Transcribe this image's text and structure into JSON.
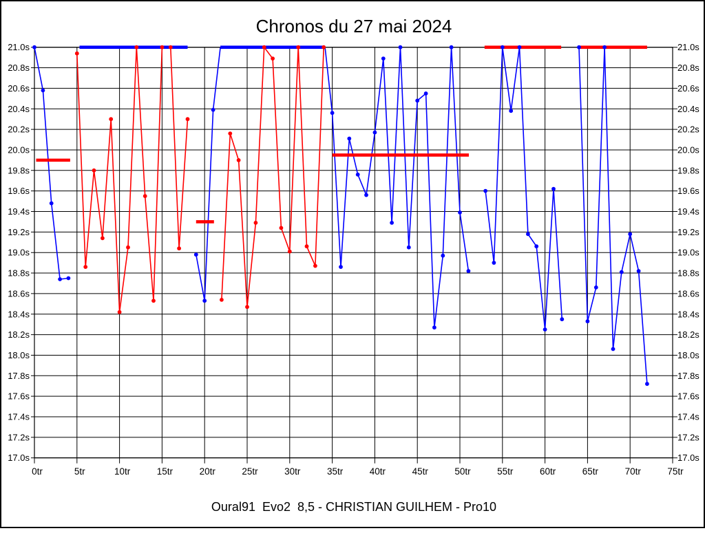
{
  "title": "Chronos du 27 mai 2024",
  "caption": "Oural91  Evo2  8,5 - CHRISTIAN GUILHEM - Pro10",
  "chart_data": {
    "type": "line",
    "title": "Chronos du 27 mai 2024",
    "xlabel": "",
    "ylabel": "",
    "xlim": [
      0,
      75
    ],
    "ylim": [
      17.0,
      21.0
    ],
    "x_tick_step": 5,
    "y_tick_step": 0.2,
    "x_tick_labels": [
      "0tr",
      "5tr",
      "10tr",
      "15tr",
      "20tr",
      "25tr",
      "30tr",
      "35tr",
      "40tr",
      "45tr",
      "50tr",
      "55tr",
      "60tr",
      "65tr",
      "70tr",
      "75tr"
    ],
    "y_tick_labels": [
      "21.0s",
      "20.8s",
      "20.6s",
      "20.4s",
      "20.2s",
      "20.0s",
      "19.8s",
      "19.6s",
      "19.4s",
      "19.2s",
      "19.0s",
      "18.8s",
      "18.6s",
      "18.4s",
      "18.2s",
      "18.0s",
      "17.8s",
      "17.6s",
      "17.4s",
      "17.2s",
      "17.0s"
    ],
    "grid": true,
    "legend": "none",
    "colors": {
      "blue": "#0000ff",
      "red": "#ff0000"
    },
    "series": [
      {
        "name": "blue-laps",
        "color": "#0000ff",
        "segments": [
          [
            [
              0,
              21.0
            ],
            [
              1,
              20.58
            ],
            [
              2,
              19.48
            ],
            [
              3,
              18.74
            ],
            [
              4,
              18.75
            ]
          ],
          [
            [
              19,
              18.98
            ],
            [
              20,
              18.53
            ],
            [
              21,
              20.39
            ],
            [
              21.85,
              21.0
            ]
          ],
          [
            [
              34.15,
              21.0
            ],
            [
              35,
              20.36
            ],
            [
              36,
              18.86
            ],
            [
              37,
              20.11
            ],
            [
              38,
              19.76
            ],
            [
              39,
              19.56
            ],
            [
              40,
              20.17
            ],
            [
              41,
              20.89
            ],
            [
              42,
              19.29
            ],
            [
              43,
              21.0
            ],
            [
              44,
              19.05
            ],
            [
              45,
              20.48
            ],
            [
              46,
              20.55
            ],
            [
              47,
              18.27
            ],
            [
              48,
              18.97
            ],
            [
              49,
              21.0
            ],
            [
              50,
              19.39
            ],
            [
              51,
              18.82
            ]
          ],
          [
            [
              53,
              19.6
            ],
            [
              54,
              18.9
            ],
            [
              55,
              21.0
            ],
            [
              56,
              20.38
            ],
            [
              57,
              21.0
            ],
            [
              58,
              19.18
            ],
            [
              59,
              19.06
            ],
            [
              60,
              18.25
            ],
            [
              61,
              19.62
            ],
            [
              62,
              18.35
            ]
          ],
          [
            [
              64,
              21.0
            ],
            [
              65,
              18.33
            ],
            [
              66,
              18.66
            ],
            [
              67,
              21.0
            ],
            [
              68,
              18.06
            ],
            [
              69,
              18.81
            ],
            [
              70,
              19.18
            ],
            [
              71,
              18.82
            ],
            [
              72,
              17.72
            ]
          ]
        ]
      },
      {
        "name": "red-laps",
        "color": "#ff0000",
        "segments": [
          [
            [
              5,
              20.94
            ],
            [
              6,
              18.86
            ],
            [
              7,
              19.8
            ],
            [
              8,
              19.14
            ],
            [
              9,
              20.3
            ],
            [
              10,
              18.42
            ],
            [
              11,
              19.05
            ],
            [
              12,
              21.0
            ],
            [
              13,
              19.55
            ],
            [
              14,
              18.53
            ],
            [
              15,
              21.0
            ],
            [
              16,
              21.0
            ],
            [
              17,
              19.04
            ],
            [
              18,
              20.3
            ]
          ],
          [
            [
              22,
              18.54
            ],
            [
              23,
              20.16
            ],
            [
              24,
              19.9
            ],
            [
              25,
              18.47
            ],
            [
              26,
              19.29
            ],
            [
              27,
              21.0
            ],
            [
              28,
              20.89
            ],
            [
              29,
              19.24
            ],
            [
              30,
              19.01
            ],
            [
              31,
              21.0
            ],
            [
              32,
              19.06
            ],
            [
              33,
              18.87
            ],
            [
              34,
              21.0
            ]
          ]
        ]
      }
    ],
    "avg_bars": [
      {
        "color": "#ff0000",
        "time": 19.9,
        "lap_start": 0.2,
        "lap_end": 4.2
      },
      {
        "color": "#0000ff",
        "time": 21.0,
        "lap_start": 5.3,
        "lap_end": 18.0
      },
      {
        "color": "#ff0000",
        "time": 19.3,
        "lap_start": 19.0,
        "lap_end": 21.1
      },
      {
        "color": "#0000ff",
        "time": 21.0,
        "lap_start": 21.85,
        "lap_end": 34.15
      },
      {
        "color": "#ff0000",
        "time": 19.95,
        "lap_start": 35.0,
        "lap_end": 51.05
      },
      {
        "color": "#ff0000",
        "time": 21.0,
        "lap_start": 52.9,
        "lap_end": 61.9
      },
      {
        "color": "#ff0000",
        "time": 21.0,
        "lap_start": 64.15,
        "lap_end": 72.0
      }
    ]
  }
}
